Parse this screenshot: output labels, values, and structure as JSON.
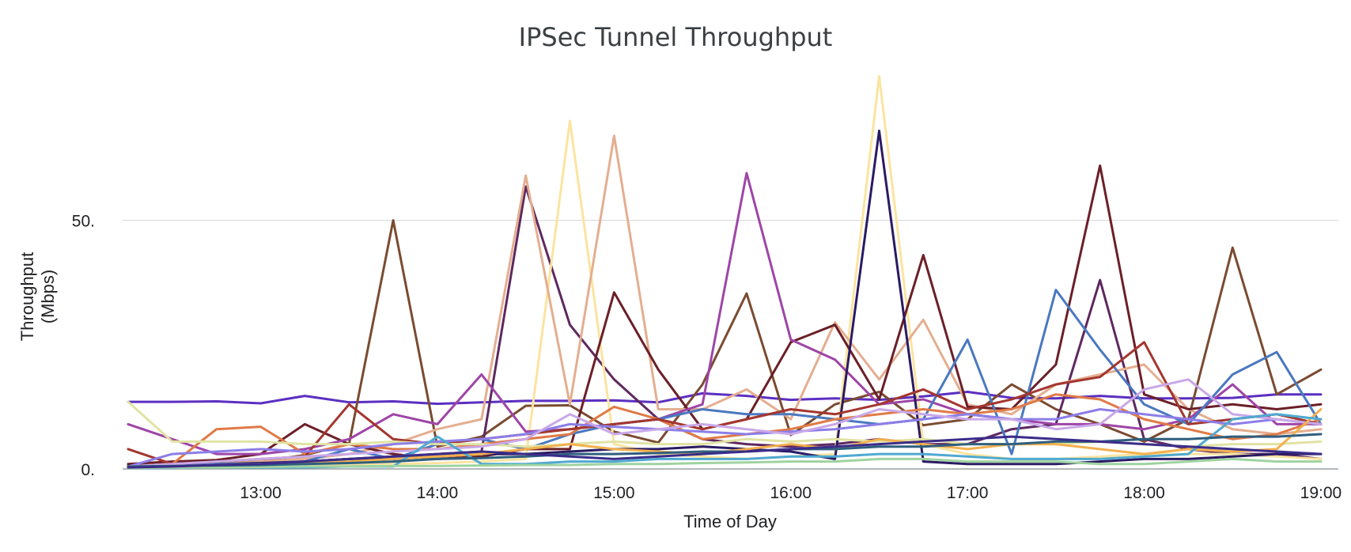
{
  "chart_data": {
    "type": "line",
    "title": "IPSec Tunnel Throughput",
    "xlabel": "Time of Day",
    "ylabel_lines": [
      "Throughput",
      "(Mbps)"
    ],
    "x": [
      "12:15",
      "12:30",
      "12:45",
      "13:00",
      "13:15",
      "13:30",
      "13:45",
      "14:00",
      "14:15",
      "14:30",
      "14:45",
      "15:00",
      "15:15",
      "15:30",
      "15:45",
      "16:00",
      "16:15",
      "16:30",
      "16:45",
      "17:00",
      "17:15",
      "17:30",
      "17:45",
      "18:00",
      "18:15",
      "18:30",
      "18:45",
      "19:00"
    ],
    "x_ticks": [
      "13:00",
      "14:00",
      "15:00",
      "16:00",
      "17:00",
      "18:00",
      "19:00"
    ],
    "y_ticks": [
      {
        "value": 0,
        "label": "0."
      },
      {
        "value": 50,
        "label": "50."
      }
    ],
    "ylim": [
      0,
      80
    ],
    "grid": true,
    "legend": "none",
    "series": [
      {
        "color": "#5b2fc1",
        "values": [
          13.5,
          13.5,
          13.6,
          13.2,
          14.7,
          13.4,
          13.6,
          13.1,
          13.4,
          13.7,
          13.7,
          13.8,
          13.4,
          15.2,
          14.7,
          13.9,
          14.2,
          13.9,
          14.6,
          15.5,
          14.3,
          14.2,
          14.7,
          14.2,
          14.2,
          14.3,
          15.0,
          15.0
        ]
      },
      {
        "color": "#7a4b31",
        "values": [
          0.7,
          0.8,
          1.2,
          1.5,
          2.8,
          5.0,
          50.0,
          4.5,
          6.5,
          12.7,
          12.8,
          7.5,
          5.3,
          17.0,
          35.3,
          6.8,
          13.0,
          15.5,
          8.8,
          10.0,
          17.0,
          12.0,
          9.0,
          5.5,
          10.0,
          44.5,
          15.0,
          20.0
        ]
      },
      {
        "color": "#5e2860",
        "values": [
          0.3,
          0.5,
          0.8,
          1.0,
          1.5,
          2.0,
          2.5,
          3.0,
          3.5,
          56.8,
          29.0,
          18.0,
          10.0,
          6.0,
          5.0,
          4.5,
          5.0,
          6.0,
          5.0,
          5.0,
          8.0,
          9.0,
          38.0,
          6.0,
          4.0,
          3.0,
          3.0,
          2.0
        ]
      },
      {
        "color": "#fbe4a0",
        "values": [
          0.2,
          0.3,
          0.4,
          0.5,
          0.6,
          0.8,
          1.0,
          1.2,
          1.5,
          2.0,
          70.0,
          5.0,
          3.0,
          2.5,
          2.0,
          2.5,
          3.0,
          79.0,
          5.0,
          3.0,
          2.0,
          2.0,
          2.5,
          3.0,
          3.0,
          3.0,
          2.5,
          2.0
        ]
      },
      {
        "color": "#e4ae90",
        "values": [
          0.5,
          0.8,
          1.0,
          1.5,
          2.0,
          3.0,
          5.0,
          8.0,
          10.0,
          59.0,
          13.0,
          67.0,
          12.0,
          12.0,
          16.0,
          10.0,
          29.5,
          18.0,
          30.0,
          13.0,
          11.0,
          17.0,
          19.0,
          21.0,
          12.0,
          8.0,
          7.0,
          8.0
        ]
      },
      {
        "color": "#6b1f28",
        "values": [
          1.0,
          1.5,
          1.8,
          3.0,
          9.0,
          5.0,
          3.0,
          2.0,
          2.5,
          4.0,
          4.0,
          35.5,
          20.0,
          8.0,
          10.0,
          25.5,
          29.0,
          14.0,
          43.0,
          12.5,
          12.0,
          21.0,
          61.0,
          15.0,
          12.0,
          13.0,
          12.0,
          13.0
        ]
      },
      {
        "color": "#9e45a7",
        "values": [
          9.0,
          6.0,
          3.0,
          3.0,
          4.0,
          6.0,
          11.0,
          9.0,
          19.0,
          7.5,
          8.0,
          9.0,
          10.0,
          13.0,
          59.5,
          26.0,
          22.0,
          13.0,
          14.0,
          11.0,
          10.0,
          9.0,
          9.0,
          8.0,
          10.0,
          17.0,
          9.0,
          9.0
        ]
      },
      {
        "color": "#2a1a63",
        "values": [
          0.5,
          0.8,
          1.0,
          1.2,
          1.5,
          2.0,
          2.0,
          2.5,
          3.0,
          3.0,
          3.5,
          4.0,
          4.0,
          4.5,
          4.0,
          3.5,
          2.0,
          68.0,
          1.5,
          1.0,
          1.0,
          1.0,
          1.5,
          2.0,
          2.0,
          2.5,
          3.0,
          3.0
        ]
      },
      {
        "color": "#4a78c0",
        "values": [
          0.5,
          0.5,
          1.0,
          1.0,
          1.5,
          4.0,
          2.0,
          5.0,
          6.0,
          4.0,
          7.0,
          9.0,
          10.0,
          12.0,
          11.0,
          11.0,
          10.0,
          9.0,
          10.0,
          26.0,
          3.0,
          36.0,
          24.0,
          13.0,
          9.0,
          19.0,
          23.5,
          9.0
        ]
      },
      {
        "color": "#e07a47",
        "values": [
          0.5,
          1.0,
          8.0,
          8.5,
          3.0,
          5.0,
          4.0,
          4.0,
          5.0,
          6.0,
          7.0,
          12.5,
          10.0,
          6.0,
          7.0,
          8.0,
          10.0,
          11.0,
          12.0,
          11.0,
          12.0,
          15.0,
          14.0,
          10.0,
          8.0,
          6.0,
          7.0,
          10.0
        ]
      },
      {
        "color": "#a3362f",
        "values": [
          4.0,
          1.0,
          1.5,
          2.0,
          2.5,
          13.0,
          6.0,
          5.0,
          6.0,
          7.0,
          8.0,
          9.0,
          10.0,
          8.0,
          10.0,
          12.0,
          11.0,
          13.0,
          16.0,
          12.0,
          14.0,
          17.0,
          18.5,
          25.5,
          9.0,
          10.0,
          11.0,
          9.0
        ]
      },
      {
        "color": "#e0e3a3",
        "values": [
          13.5,
          5.5,
          5.5,
          5.5,
          5.0,
          5.0,
          5.5,
          5.0,
          5.0,
          4.5,
          5.0,
          5.5,
          5.0,
          5.0,
          6.0,
          5.5,
          6.0,
          5.5,
          6.0,
          5.0,
          5.0,
          5.0,
          5.5,
          5.0,
          4.5,
          5.0,
          5.0,
          5.5
        ]
      },
      {
        "color": "#8c7ee8",
        "values": [
          0.5,
          3.0,
          3.5,
          4.0,
          3.5,
          4.0,
          5.0,
          5.5,
          6.0,
          7.0,
          9.0,
          8.5,
          8.0,
          7.5,
          7.0,
          7.5,
          8.0,
          9.0,
          10.0,
          11.0,
          10.0,
          10.0,
          12.0,
          11.0,
          10.0,
          9.0,
          10.0,
          9.0
        ]
      },
      {
        "color": "#c9a8e8",
        "values": [
          0.5,
          1.0,
          1.5,
          2.0,
          2.5,
          3.0,
          3.5,
          4.0,
          4.5,
          6.0,
          11.0,
          7.0,
          8.0,
          9.0,
          8.0,
          7.0,
          9.0,
          12.0,
          11.0,
          10.0,
          10.0,
          8.0,
          9.0,
          16.0,
          18.0,
          11.0,
          10.0,
          9.0
        ]
      },
      {
        "color": "#f2b04e",
        "values": [
          0.3,
          0.5,
          0.8,
          1.0,
          1.2,
          1.5,
          2.0,
          2.5,
          3.0,
          4.0,
          5.0,
          4.0,
          3.5,
          3.0,
          4.0,
          5.0,
          4.0,
          6.0,
          5.0,
          4.0,
          5.0,
          5.0,
          4.0,
          3.0,
          4.0,
          3.5,
          4.0,
          12.0
        ]
      },
      {
        "color": "#4fa9d0",
        "values": [
          0.2,
          0.2,
          0.3,
          0.3,
          0.3,
          0.5,
          0.5,
          6.5,
          1.0,
          1.0,
          1.5,
          1.5,
          2.0,
          2.0,
          2.0,
          2.5,
          2.5,
          3.0,
          3.0,
          2.5,
          2.0,
          2.0,
          2.0,
          2.5,
          3.0,
          10.0,
          11.0,
          10.0
        ]
      },
      {
        "color": "#9fd3a0",
        "values": [
          0.2,
          0.3,
          0.3,
          0.4,
          0.5,
          0.5,
          0.6,
          0.6,
          0.7,
          0.8,
          0.8,
          1.0,
          1.0,
          1.2,
          1.3,
          1.5,
          1.5,
          2.0,
          2.0,
          1.5,
          1.5,
          1.5,
          1.0,
          1.0,
          1.5,
          2.0,
          1.5,
          1.5
        ]
      },
      {
        "color": "#2f5f7e",
        "values": [
          0.5,
          0.6,
          0.7,
          0.8,
          1.0,
          1.2,
          1.5,
          2.0,
          2.2,
          2.5,
          3.0,
          3.0,
          3.2,
          3.5,
          3.5,
          4.0,
          4.0,
          4.5,
          4.5,
          5.0,
          5.0,
          5.5,
          5.5,
          6.0,
          6.0,
          6.5,
          6.5,
          7.0
        ]
      },
      {
        "color": "#3b2c8a",
        "values": [
          0.3,
          0.5,
          0.8,
          1.0,
          1.5,
          2.0,
          2.5,
          3.0,
          3.5,
          3.0,
          2.5,
          2.0,
          2.5,
          3.0,
          3.5,
          4.0,
          4.5,
          5.0,
          5.5,
          6.0,
          6.5,
          6.0,
          5.5,
          5.0,
          4.5,
          4.0,
          3.5,
          3.0
        ]
      }
    ]
  }
}
